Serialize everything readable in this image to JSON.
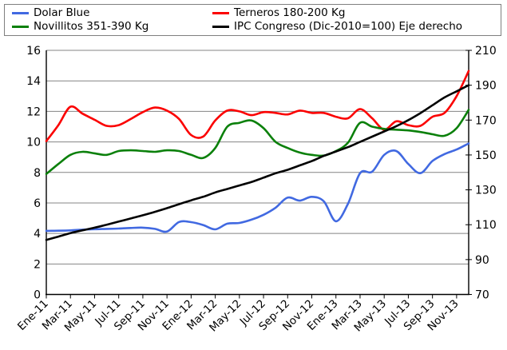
{
  "background_color": "#FFFFFF",
  "legend": {
    "items": [
      {
        "label": "Dolar Blue",
        "color": "#4169E1"
      },
      {
        "label": "Terneros 180-200 Kg",
        "color": "#FB0000"
      },
      {
        "label": "Novillitos 351-390 Kg",
        "color": "#0B800B"
      },
      {
        "label": "IPC Congreso (Dic-2010=100) Eje derecho",
        "color": "#000000"
      }
    ]
  },
  "chart_data": {
    "type": "line",
    "title": "",
    "xlabel": "",
    "ylabel_left": "",
    "ylabel_right": "",
    "grid": true,
    "legend_position": "top",
    "x": [
      "Ene-11",
      "Feb-11",
      "Mar-11",
      "Abr-11",
      "May-11",
      "Jun-11",
      "Jul-11",
      "Ago-11",
      "Sep-11",
      "Oct-11",
      "Nov-11",
      "Dic-11",
      "Ene-12",
      "Feb-12",
      "Mar-12",
      "Abr-12",
      "May-12",
      "Jun-12",
      "Jul-12",
      "Ago-12",
      "Sep-12",
      "Oct-12",
      "Nov-12",
      "Dic-12",
      "Ene-13",
      "Feb-13",
      "Mar-13",
      "Abr-13",
      "May-13",
      "Jun-13",
      "Jul-13",
      "Ago-13",
      "Sep-13",
      "Oct-13",
      "Nov-13",
      "Dic-13"
    ],
    "x_tick_labels_shown": [
      "Ene-11",
      "Mar-11",
      "May-11",
      "Jul-11",
      "Sep-11",
      "Nov-11",
      "Ene-12",
      "Mar-12",
      "May-12",
      "Jul-12",
      "Sep-12",
      "Nov-12",
      "Ene-13",
      "Mar-13",
      "May-13",
      "Jul-13",
      "Sep-13",
      "Nov-13"
    ],
    "left_axis": {
      "min": 0,
      "max": 16,
      "step": 2,
      "tick_labels": [
        "0",
        "2",
        "4",
        "6",
        "8",
        "10",
        "12",
        "14",
        "16"
      ]
    },
    "right_axis": {
      "min": 70,
      "max": 210,
      "step": 20,
      "tick_labels": [
        "70",
        "90",
        "110",
        "130",
        "150",
        "170",
        "190",
        "210"
      ]
    },
    "gridline_color": "#848484",
    "axis_color": "#000000",
    "series": [
      {
        "name": "Dolar Blue",
        "axis": "left",
        "color": "#4169E1",
        "values": [
          4.17,
          4.18,
          4.2,
          4.25,
          4.28,
          4.3,
          4.32,
          4.36,
          4.38,
          4.3,
          4.12,
          4.75,
          4.74,
          4.55,
          4.27,
          4.64,
          4.69,
          4.9,
          5.22,
          5.69,
          6.35,
          6.15,
          6.4,
          6.1,
          4.8,
          5.95,
          7.95,
          8.05,
          9.15,
          9.4,
          8.55,
          7.95,
          8.75,
          9.2,
          9.5,
          9.9
        ]
      },
      {
        "name": "Terneros 180-200 Kg",
        "axis": "left",
        "color": "#FB0000",
        "values": [
          10.05,
          11.1,
          12.3,
          11.85,
          11.45,
          11.05,
          11.1,
          11.5,
          11.95,
          12.25,
          12.05,
          11.5,
          10.45,
          10.35,
          11.4,
          12.05,
          12.0,
          11.75,
          11.95,
          11.9,
          11.8,
          12.05,
          11.9,
          11.9,
          11.65,
          11.55,
          12.15,
          11.55,
          10.8,
          11.35,
          11.1,
          11.05,
          11.65,
          11.9,
          13.0,
          14.65
        ]
      },
      {
        "name": "Novillitos 351-390 Kg",
        "axis": "left",
        "color": "#0B800B",
        "values": [
          7.9,
          8.55,
          9.15,
          9.35,
          9.25,
          9.15,
          9.4,
          9.45,
          9.4,
          9.35,
          9.45,
          9.4,
          9.15,
          8.95,
          9.6,
          11.0,
          11.25,
          11.4,
          10.9,
          10.0,
          9.6,
          9.3,
          9.15,
          9.1,
          9.4,
          9.95,
          11.25,
          11.0,
          10.85,
          10.8,
          10.75,
          10.65,
          10.5,
          10.4,
          10.9,
          12.1
        ]
      },
      {
        "name": "IPC Congreso (Dic-2010=100) Eje derecho",
        "axis": "right",
        "color": "#000000",
        "values": [
          101.3,
          103.2,
          105.2,
          106.8,
          108.3,
          110.0,
          111.8,
          113.6,
          115.4,
          117.4,
          119.5,
          121.8,
          124.0,
          126.0,
          128.5,
          130.5,
          132.5,
          134.5,
          137.0,
          139.5,
          141.5,
          144.0,
          146.5,
          149.5,
          152.0,
          154.5,
          157.5,
          160.5,
          163.5,
          166.5,
          170.0,
          174.0,
          178.5,
          183.0,
          186.5,
          190.0
        ]
      }
    ]
  }
}
